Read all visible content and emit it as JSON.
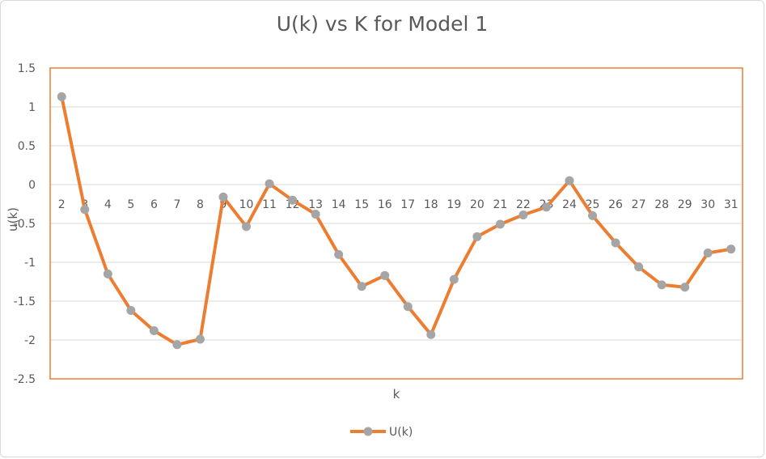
{
  "colors": {
    "line": "#ED7D31",
    "marker": "#A5A5A5",
    "plot_border": "#ED7D31",
    "grid": "#D9D9D9",
    "text": "#595959"
  },
  "chart_data": {
    "type": "line",
    "title": "U(k) vs K for Model 1",
    "xlabel": "k",
    "ylabel": "u(k)",
    "ylim": [
      -2.5,
      1.5
    ],
    "yticks": [
      "1.5",
      "1",
      "0.5",
      "0",
      "-0.5",
      "-1",
      "-1.5",
      "-2",
      "-2.5"
    ],
    "grid": true,
    "legend_position": "bottom",
    "x": [
      2,
      3,
      4,
      5,
      6,
      7,
      8,
      9,
      10,
      11,
      12,
      13,
      14,
      15,
      16,
      17,
      18,
      19,
      20,
      21,
      22,
      23,
      24,
      25,
      26,
      27,
      28,
      29,
      30,
      31
    ],
    "series": [
      {
        "name": "U(k)",
        "values": [
          1.13,
          -0.32,
          -1.15,
          -1.62,
          -1.88,
          -2.06,
          -1.99,
          -0.16,
          -0.54,
          0.01,
          -0.2,
          -0.38,
          -0.9,
          -1.31,
          -1.17,
          -1.57,
          -1.93,
          -1.22,
          -0.67,
          -0.51,
          -0.39,
          -0.29,
          0.05,
          -0.4,
          -0.75,
          -1.06,
          -1.29,
          -1.32,
          -0.88,
          -0.83
        ]
      }
    ]
  }
}
